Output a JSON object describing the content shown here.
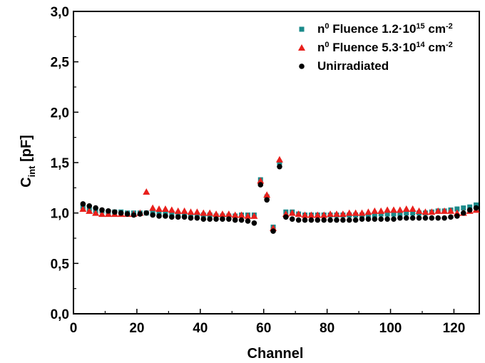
{
  "chart_data": {
    "type": "scatter",
    "xlabel": "Channel",
    "ylabel": {
      "main": "C",
      "sub": "int",
      "unit": " [pF]"
    },
    "xlim": [
      0,
      128
    ],
    "ylim": [
      0,
      3.0
    ],
    "xticks": [
      {
        "value": 0,
        "label": "0"
      },
      {
        "value": 20,
        "label": "20"
      },
      {
        "value": 40,
        "label": "40"
      },
      {
        "value": 60,
        "label": "60"
      },
      {
        "value": 80,
        "label": "80"
      },
      {
        "value": 100,
        "label": "100"
      },
      {
        "value": 120,
        "label": "120"
      }
    ],
    "yticks": [
      {
        "value": 0.0,
        "label": "0,0"
      },
      {
        "value": 0.5,
        "label": "0,5"
      },
      {
        "value": 1.0,
        "label": "1,0"
      },
      {
        "value": 1.5,
        "label": "1,5"
      },
      {
        "value": 2.0,
        "label": "2,0"
      },
      {
        "value": 2.5,
        "label": "2,5"
      },
      {
        "value": 3.0,
        "label": "3,0"
      }
    ],
    "grid": false,
    "legend_position": "top-right",
    "x": [
      3,
      5,
      7,
      9,
      11,
      13,
      15,
      17,
      19,
      21,
      23,
      25,
      27,
      29,
      31,
      33,
      35,
      37,
      39,
      41,
      43,
      45,
      47,
      49,
      51,
      53,
      55,
      57,
      59,
      61,
      63,
      65,
      67,
      69,
      71,
      73,
      75,
      77,
      79,
      81,
      83,
      85,
      87,
      89,
      91,
      93,
      95,
      97,
      99,
      101,
      103,
      105,
      107,
      109,
      111,
      113,
      115,
      117,
      119,
      121,
      123,
      125,
      127
    ],
    "series": [
      {
        "name": "n0 Fluence 1.2·10^15 cm-2",
        "legend": {
          "pre": "n",
          "sup1": "0",
          "mid": " Fluence 1.2·10",
          "sup2": "15",
          "unit": " cm",
          "sup3": "-2"
        },
        "marker": "square",
        "color": "#1a8a8a",
        "values": [
          1.06,
          1.04,
          1.02,
          1.02,
          1.01,
          1.01,
          1.01,
          1.0,
          1.0,
          1.0,
          1.0,
          1.0,
          1.0,
          1.0,
          0.99,
          0.99,
          0.99,
          0.98,
          0.98,
          0.98,
          0.98,
          0.97,
          0.97,
          0.97,
          0.97,
          0.98,
          0.98,
          0.98,
          1.33,
          1.16,
          0.86,
          1.5,
          1.01,
          1.01,
          0.99,
          0.98,
          0.98,
          0.98,
          0.98,
          0.98,
          0.98,
          0.98,
          0.98,
          0.98,
          0.98,
          0.98,
          0.98,
          0.99,
          0.99,
          0.99,
          0.99,
          1.0,
          1.0,
          1.0,
          1.0,
          1.01,
          1.02,
          1.02,
          1.03,
          1.04,
          1.05,
          1.06,
          1.08
        ]
      },
      {
        "name": "n0 Fluence 5.3·10^14 cm-2",
        "legend": {
          "pre": "n",
          "sup1": "0",
          "mid": " Fluence 5.3·10",
          "sup2": "14",
          "unit": " cm",
          "sup3": "-2"
        },
        "marker": "triangle",
        "color": "#e8201c",
        "values": [
          1.04,
          1.02,
          1.0,
          0.99,
          0.99,
          0.99,
          0.99,
          0.99,
          0.99,
          1.0,
          1.21,
          1.05,
          1.04,
          1.04,
          1.03,
          1.02,
          1.02,
          1.01,
          1.01,
          1.0,
          1.0,
          0.99,
          0.99,
          0.99,
          0.98,
          0.98,
          0.97,
          0.97,
          1.32,
          1.18,
          0.85,
          1.53,
          0.99,
          1.0,
          0.99,
          0.98,
          0.98,
          0.98,
          0.98,
          0.99,
          0.99,
          0.99,
          1.0,
          1.0,
          1.0,
          1.01,
          1.02,
          1.02,
          1.03,
          1.03,
          1.03,
          1.04,
          1.04,
          1.02,
          1.01,
          1.01,
          1.02,
          1.02,
          1.02,
          1.0,
          1.0,
          1.02,
          1.03
        ]
      },
      {
        "name": "Unirradiated",
        "legend": {
          "pre": "Unirradiated",
          "sup1": "",
          "mid": "",
          "sup2": "",
          "unit": "",
          "sup3": ""
        },
        "marker": "circle",
        "color": "#000000",
        "values": [
          1.09,
          1.07,
          1.05,
          1.03,
          1.02,
          1.01,
          1.0,
          0.99,
          0.98,
          0.99,
          1.0,
          0.98,
          0.97,
          0.97,
          0.96,
          0.96,
          0.96,
          0.95,
          0.95,
          0.94,
          0.94,
          0.94,
          0.94,
          0.94,
          0.93,
          0.93,
          0.92,
          0.9,
          1.28,
          1.13,
          0.82,
          1.46,
          0.96,
          0.94,
          0.93,
          0.93,
          0.93,
          0.93,
          0.93,
          0.93,
          0.93,
          0.93,
          0.93,
          0.93,
          0.94,
          0.94,
          0.94,
          0.94,
          0.94,
          0.94,
          0.95,
          0.95,
          0.95,
          0.95,
          0.95,
          0.95,
          0.95,
          0.95,
          0.96,
          0.97,
          1.0,
          1.03,
          1.05
        ]
      }
    ]
  }
}
